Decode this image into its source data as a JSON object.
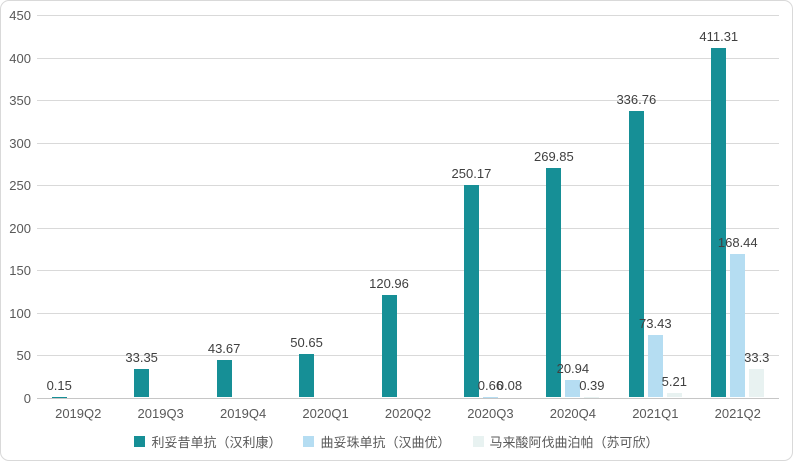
{
  "chart_data": {
    "type": "bar",
    "categories": [
      "2019Q2",
      "2019Q3",
      "2019Q4",
      "2020Q1",
      "2020Q2",
      "2020Q3",
      "2020Q4",
      "2021Q1",
      "2021Q2"
    ],
    "series": [
      {
        "name": "利妥昔单抗（汉利康）",
        "color": "#168f96",
        "values": [
          0.15,
          33.35,
          43.67,
          50.65,
          120.96,
          250.17,
          269.85,
          336.76,
          411.31
        ],
        "labels": [
          "0.15",
          "33.35",
          "43.67",
          "50.65",
          "120.96",
          "250.17",
          "269.85",
          "336.76",
          "411.31"
        ]
      },
      {
        "name": "曲妥珠单抗（汉曲优）",
        "color": "#b5ddf2",
        "values": [
          null,
          null,
          null,
          null,
          null,
          0.66,
          20.94,
          73.43,
          168.44
        ],
        "labels": [
          null,
          null,
          null,
          null,
          null,
          "0.66",
          "20.94",
          "73.43",
          "168.44"
        ]
      },
      {
        "name": "马来酸阿伐曲泊帕（苏可欣）",
        "color": "#e8f2f1",
        "values": [
          null,
          null,
          null,
          null,
          null,
          0.08,
          0.39,
          5.21,
          33.3
        ],
        "labels": [
          null,
          null,
          null,
          null,
          null,
          "0.08",
          "0.39",
          "5.21",
          "33.3"
        ]
      }
    ],
    "title": "",
    "xlabel": "",
    "ylabel": "",
    "ylim": [
      0,
      450
    ],
    "yticks": [
      0,
      50,
      100,
      150,
      200,
      250,
      300,
      350,
      400,
      450
    ],
    "grid": true,
    "legend_position": "bottom"
  },
  "colors": {
    "background": "#ffffff",
    "card_border": "#d9d9d9",
    "gridline": "#d9d9d9",
    "axis_line": "#c6c6c6",
    "axis_text": "#595959",
    "data_label_text": "#404040"
  }
}
